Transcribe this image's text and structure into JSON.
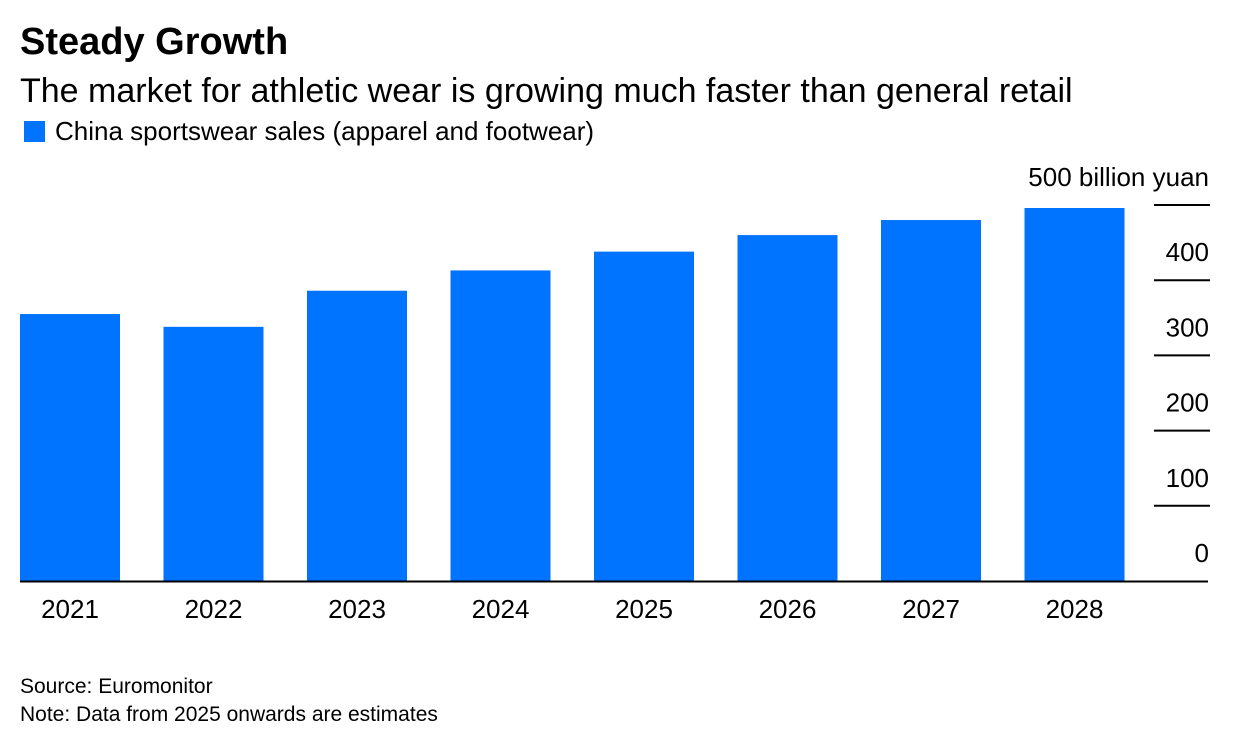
{
  "title": "Steady Growth",
  "subtitle": "The market for athletic wear is growing much faster than general retail",
  "legend": {
    "label": "China sportswear sales (apparel and footwear)",
    "color": "#0073ff"
  },
  "source": "Source: Euromonitor",
  "note": "Note: Data from 2025 onwards are estimates",
  "chart_data": {
    "type": "bar",
    "title": "Steady Growth",
    "subtitle": "The market for athletic wear is growing much faster than general retail",
    "xlabel": "",
    "ylabel": "billion yuan",
    "categories": [
      "2021",
      "2022",
      "2023",
      "2024",
      "2025",
      "2026",
      "2027",
      "2028"
    ],
    "series": [
      {
        "name": "China sportswear sales (apparel and footwear)",
        "values": [
          355,
          338,
          386,
          413,
          438,
          460,
          480,
          496
        ],
        "color": "#0073ff"
      }
    ],
    "ylim": [
      0,
      500
    ],
    "yticks": [
      0,
      100,
      200,
      300,
      400,
      500
    ],
    "ytick_labels": [
      "0",
      "100",
      "200",
      "300",
      "400",
      "500 billion yuan"
    ],
    "yaxis_position": "right",
    "grid": false,
    "legend_position": "top-left"
  }
}
